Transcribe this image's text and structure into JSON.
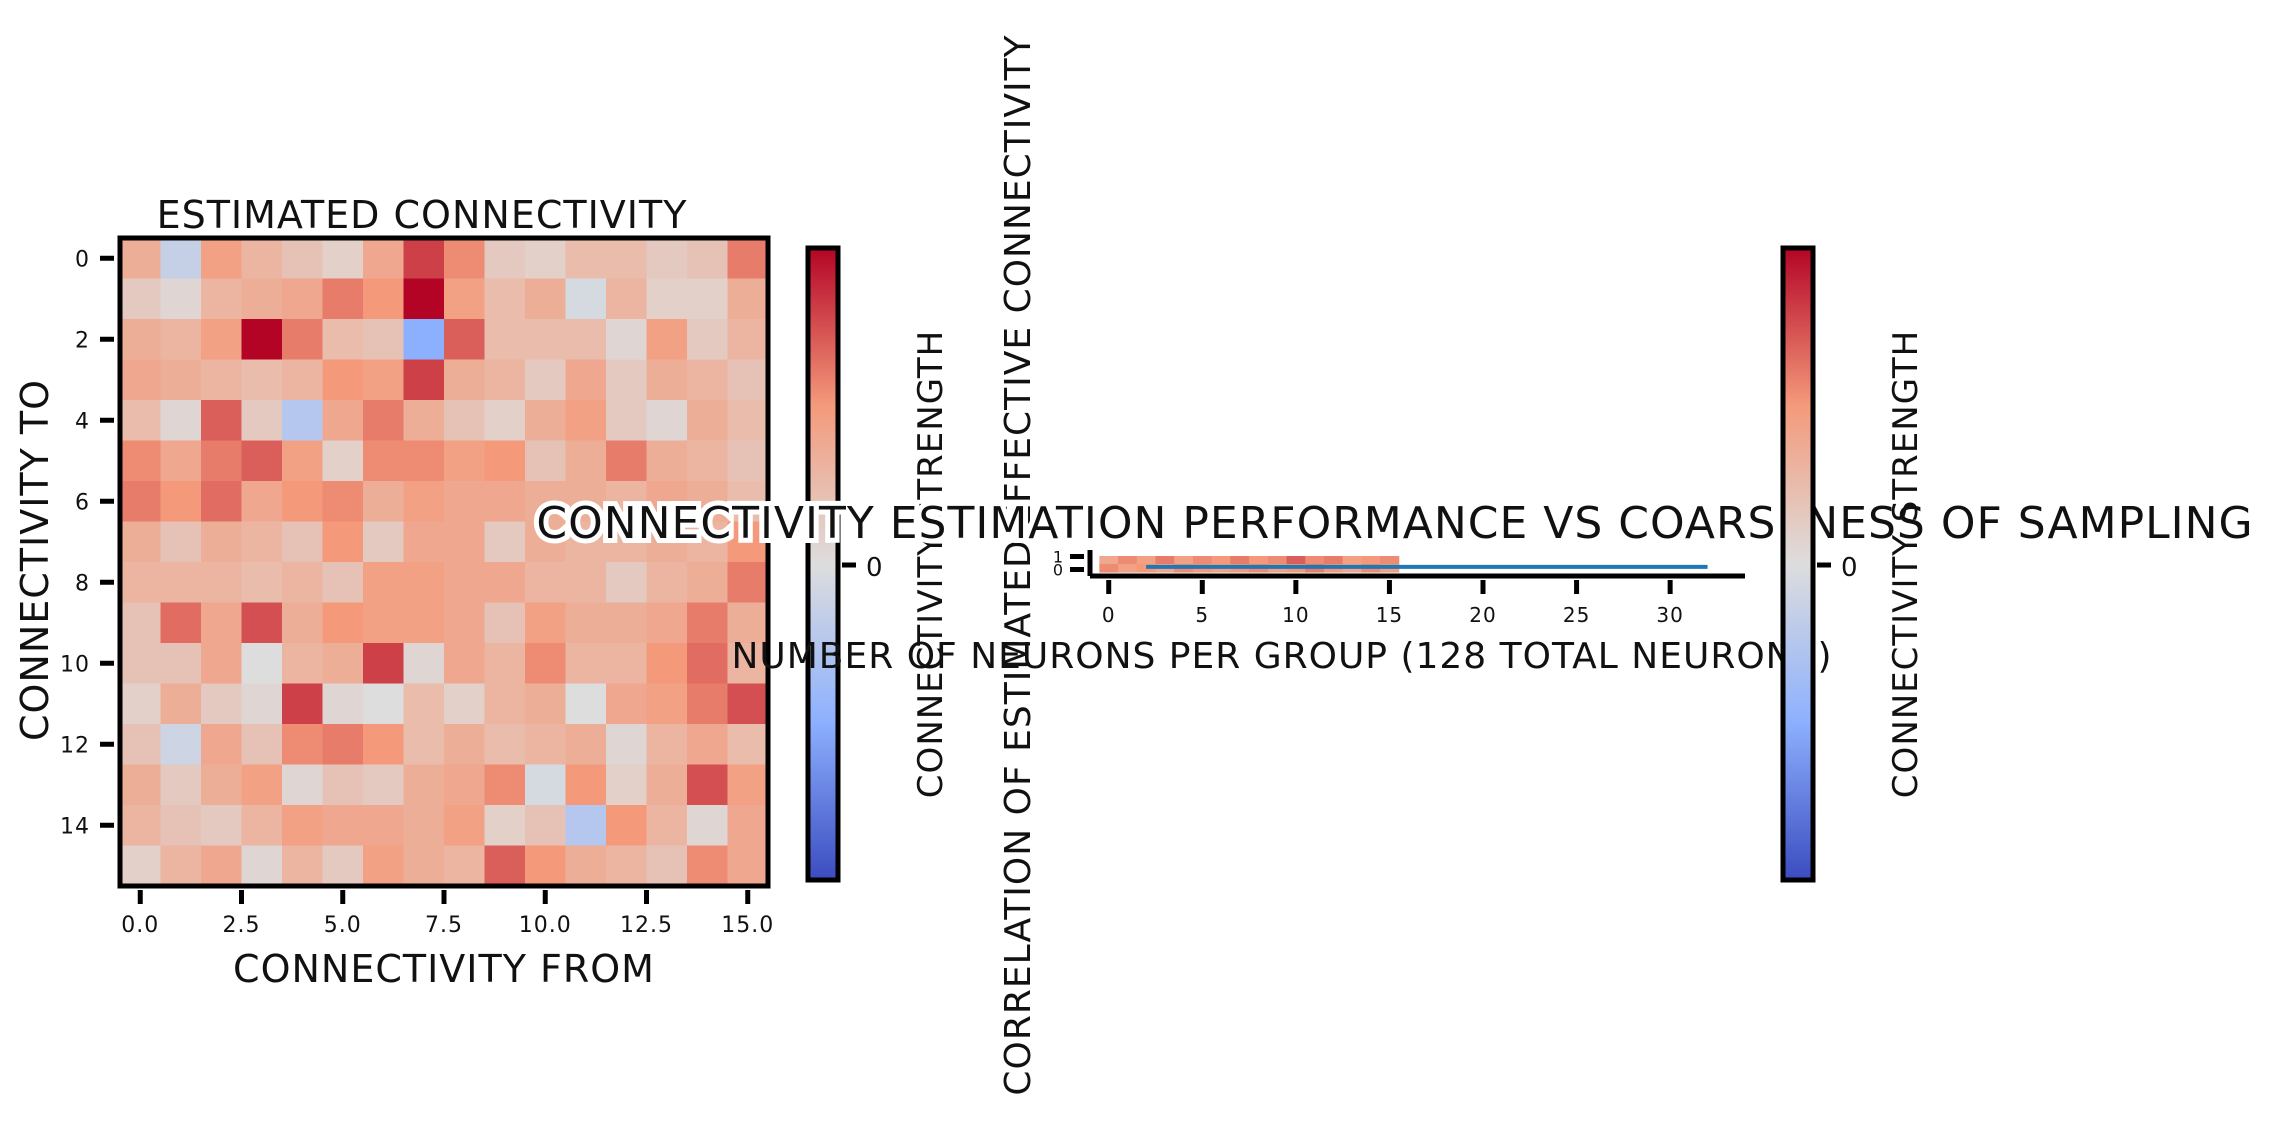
{
  "chart_data": [
    {
      "type": "heatmap",
      "title": "Estimated Connectivity",
      "xlabel": "Connectivity from",
      "ylabel": "Connectivity to",
      "x_ticks": [
        "0.0",
        "2.5",
        "5.0",
        "7.5",
        "10.0",
        "12.5",
        "15.0"
      ],
      "x_tick_values": [
        0,
        2.5,
        5,
        7.5,
        10,
        12.5,
        15
      ],
      "y_ticks": [
        "0",
        "2",
        "4",
        "6",
        "8",
        "10",
        "12",
        "14"
      ],
      "y_tick_values": [
        0,
        2,
        4,
        6,
        8,
        10,
        12,
        14
      ],
      "colormap": "coolwarm",
      "colorbar_label": "Connectivity strength",
      "colorbar_ticks": [
        "0"
      ],
      "value_range": [
        -1,
        1
      ],
      "values": [
        [
          0.35,
          -0.15,
          0.45,
          0.3,
          0.2,
          0.1,
          0.4,
          0.8,
          0.55,
          0.15,
          0.1,
          0.25,
          0.25,
          0.15,
          0.2,
          0.6
        ],
        [
          0.15,
          0.05,
          0.3,
          0.35,
          0.4,
          0.6,
          0.5,
          1.0,
          0.45,
          0.25,
          0.35,
          -0.05,
          0.3,
          0.1,
          0.1,
          0.35
        ],
        [
          0.35,
          0.3,
          0.45,
          1.0,
          0.6,
          0.25,
          0.2,
          -0.5,
          0.7,
          0.25,
          0.25,
          0.25,
          0.05,
          0.45,
          0.15,
          0.3
        ],
        [
          0.4,
          0.35,
          0.3,
          0.25,
          0.3,
          0.5,
          0.45,
          0.8,
          0.35,
          0.3,
          0.15,
          0.4,
          0.15,
          0.35,
          0.3,
          0.2
        ],
        [
          0.25,
          0.05,
          0.7,
          0.15,
          -0.25,
          0.4,
          0.6,
          0.35,
          0.2,
          0.1,
          0.35,
          0.45,
          0.15,
          0.05,
          0.35,
          0.25
        ],
        [
          0.55,
          0.4,
          0.6,
          0.7,
          0.45,
          0.1,
          0.55,
          0.55,
          0.45,
          0.5,
          0.2,
          0.35,
          0.6,
          0.35,
          0.3,
          0.2
        ],
        [
          0.6,
          0.5,
          0.65,
          0.4,
          0.5,
          0.55,
          0.35,
          0.45,
          0.4,
          0.4,
          0.35,
          0.35,
          0.3,
          0.4,
          0.35,
          0.25
        ],
        [
          0.35,
          0.2,
          0.35,
          0.3,
          0.2,
          0.5,
          0.15,
          0.4,
          0.4,
          0.15,
          0.35,
          0.3,
          0.3,
          0.35,
          0.3,
          0.5
        ],
        [
          0.3,
          0.3,
          0.3,
          0.25,
          0.3,
          0.2,
          0.45,
          0.45,
          0.4,
          0.4,
          0.3,
          0.3,
          0.15,
          0.3,
          0.35,
          0.6
        ],
        [
          0.2,
          0.65,
          0.4,
          0.75,
          0.35,
          0.5,
          0.45,
          0.45,
          0.4,
          0.2,
          0.45,
          0.35,
          0.35,
          0.4,
          0.6,
          0.35
        ],
        [
          0.2,
          0.2,
          0.4,
          0.0,
          0.3,
          0.35,
          0.8,
          0.05,
          0.4,
          0.3,
          0.55,
          0.3,
          0.3,
          0.5,
          0.65,
          0.3
        ],
        [
          0.1,
          0.35,
          0.15,
          0.05,
          0.8,
          0.05,
          0.0,
          0.25,
          0.1,
          0.3,
          0.35,
          0.0,
          0.4,
          0.45,
          0.6,
          0.75
        ],
        [
          0.2,
          -0.1,
          0.4,
          0.2,
          0.55,
          0.6,
          0.5,
          0.25,
          0.35,
          0.25,
          0.3,
          0.35,
          0.05,
          0.3,
          0.4,
          0.25
        ],
        [
          0.35,
          0.15,
          0.35,
          0.45,
          0.05,
          0.2,
          0.15,
          0.35,
          0.4,
          0.55,
          -0.05,
          0.5,
          0.1,
          0.35,
          0.75,
          0.45
        ],
        [
          0.3,
          0.2,
          0.15,
          0.3,
          0.45,
          0.4,
          0.4,
          0.35,
          0.45,
          0.1,
          0.2,
          -0.25,
          0.5,
          0.3,
          0.05,
          0.4
        ],
        [
          0.1,
          0.3,
          0.4,
          0.05,
          0.3,
          0.15,
          0.45,
          0.35,
          0.3,
          0.7,
          0.5,
          0.35,
          0.3,
          0.2,
          0.55,
          0.4
        ]
      ]
    },
    {
      "type": "line",
      "title": "Connectivity estimation performance vs coarseness of sampling",
      "xlabel": "Number of neurons per group (128 total neurons)",
      "ylabel": "Correlation of estimated effective connectivity",
      "x_ticks": [
        "0",
        "5",
        "10",
        "15",
        "20",
        "25",
        "30"
      ],
      "x_tick_values": [
        0,
        5,
        10,
        15,
        20,
        25,
        30
      ],
      "xlim": [
        -1,
        34
      ],
      "y_ticks": [
        "0",
        "1"
      ],
      "y_tick_values": [
        0,
        1
      ],
      "ylim": [
        -0.5,
        1.5
      ],
      "series": [
        {
          "x": [
            2,
            4,
            8,
            16,
            32
          ],
          "y": [
            0.2,
            0.2,
            0.2,
            0.2,
            0.2
          ],
          "color": "#1f77b4"
        }
      ],
      "overlay_heatmap_values": [
        [
          0.4,
          0.55,
          0.45,
          0.6,
          0.45,
          0.55,
          0.5,
          0.6,
          0.5,
          0.55,
          0.7,
          0.55,
          0.6,
          0.45,
          0.5,
          0.55
        ],
        [
          0.55,
          0.45,
          0.5,
          0.4,
          0.55,
          0.5,
          0.45,
          0.5,
          0.55,
          0.45,
          0.5,
          0.6,
          0.5,
          0.4,
          0.55,
          0.45
        ]
      ]
    },
    {
      "type": "colorbar",
      "colormap": "coolwarm",
      "label": "Connectivity strength",
      "ticks": [
        "0"
      ],
      "value_range": [
        -1,
        1
      ]
    }
  ]
}
